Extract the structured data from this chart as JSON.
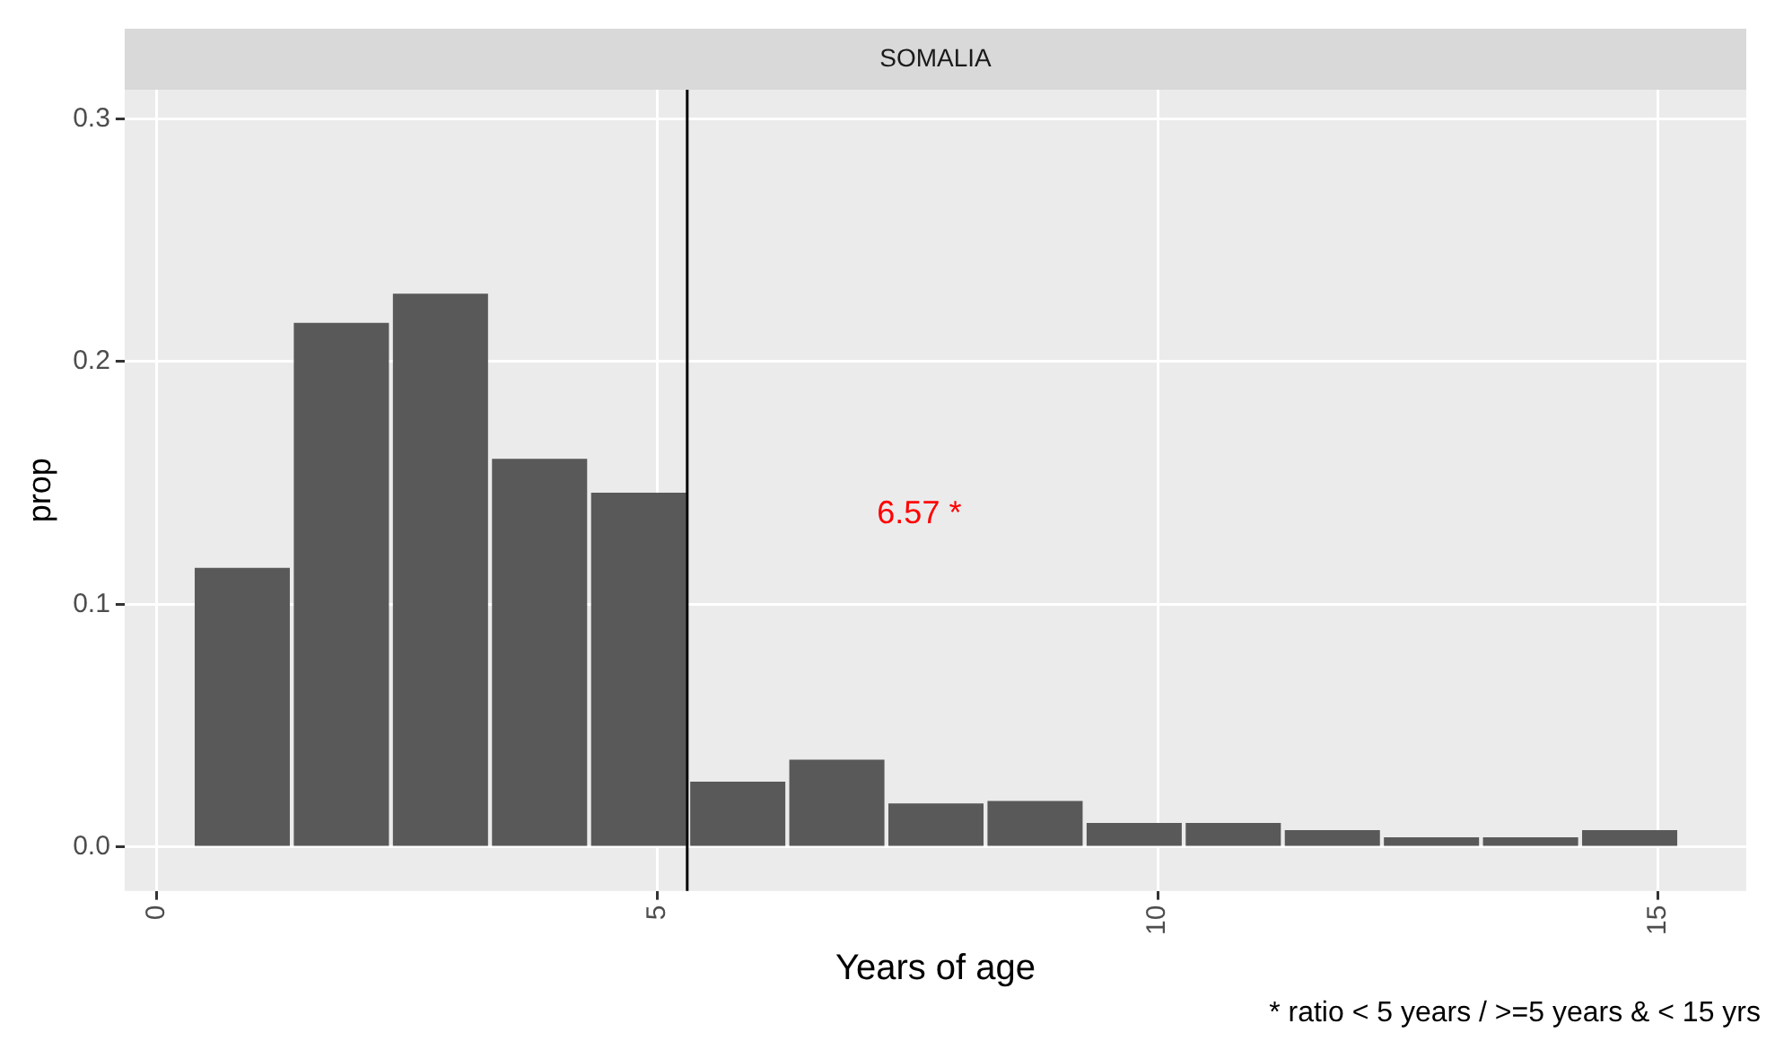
{
  "chart_data": {
    "type": "histogram",
    "title": "SOMALIA",
    "xlabel": "Years of age",
    "ylabel": "prop",
    "bins": [
      0.36,
      1.35,
      2.34,
      3.33,
      4.32,
      5.31,
      6.3,
      7.29,
      8.28,
      9.27,
      10.26,
      11.25,
      12.24,
      13.23,
      14.22,
      15.21
    ],
    "values": [
      0.115,
      0.216,
      0.228,
      0.16,
      0.146,
      0.027,
      0.036,
      0.018,
      0.019,
      0.01,
      0.01,
      0.007,
      0.004,
      0.004,
      0.007
    ],
    "color": "#595959",
    "xlim": [
      -0.32,
      15.88
    ],
    "xticks": [
      0,
      5,
      10,
      15
    ],
    "ylim": [
      -0.018,
      0.312
    ],
    "yticks": [
      {
        "value": 0,
        "label": "0.0"
      },
      {
        "value": 0.1,
        "label": "0.1"
      },
      {
        "value": 0.2,
        "label": "0.2"
      },
      {
        "value": 0.3,
        "label": "0.3"
      }
    ],
    "grid": true,
    "legend": false,
    "ref_lines": [
      {
        "axis": "x",
        "value": 5.3,
        "color": "#000000"
      }
    ],
    "annotations": [
      "6.57 *",
      "* ratio < 5 years / >=5 years & < 15 yrs"
    ]
  }
}
